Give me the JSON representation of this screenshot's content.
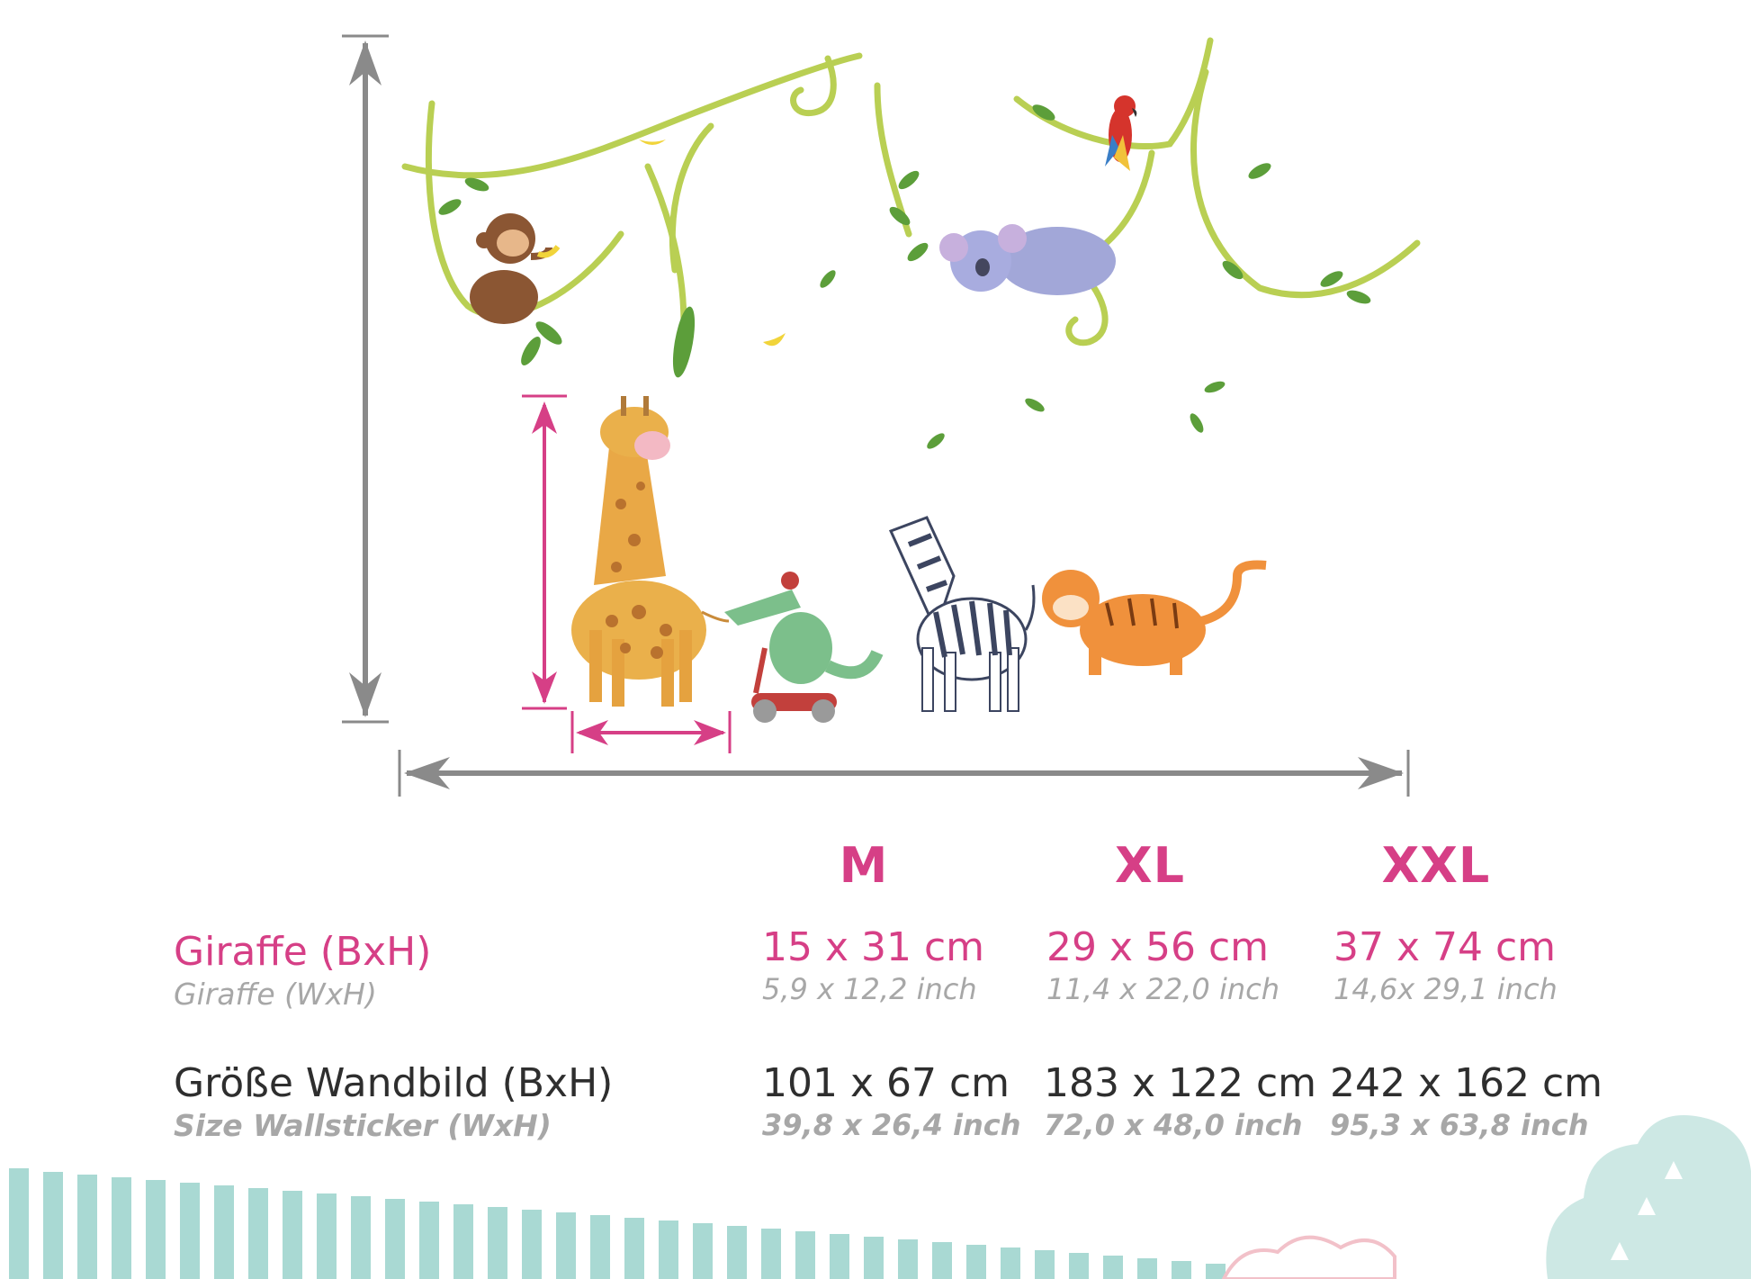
{
  "sizes": {
    "headers": [
      "M",
      "XL",
      "XXL"
    ]
  },
  "rows": {
    "giraffe": {
      "label": "Giraffe (BxH)",
      "sublabel": "Giraffe (WxH)",
      "values": [
        {
          "cm": "15 x 31 cm",
          "inch": "5,9 x 12,2 inch"
        },
        {
          "cm": "29 x 56 cm",
          "inch": "11,4 x 22,0 inch"
        },
        {
          "cm": "37 x 74 cm",
          "inch": "14,6x 29,1 inch"
        }
      ]
    },
    "wall": {
      "label": "Größe Wandbild (BxH)",
      "sublabel": "Size Wallsticker (WxH)",
      "values": [
        {
          "cm": "101 x 67 cm",
          "inch": "39,8 x 26,4 inch"
        },
        {
          "cm": "183 x 122 cm",
          "inch": "72,0 x 48,0 inch"
        },
        {
          "cm": "242 x 162 cm",
          "inch": "95,3 x 63,8 inch"
        }
      ]
    }
  },
  "colors": {
    "accent_pink": "#d63f86",
    "dimension_gray": "#8a8a8a",
    "vine_green": "#9cc43c",
    "stripe_teal": "#a9d9d3"
  },
  "illustration": {
    "icons": [
      "monkey-icon",
      "koala-icon",
      "parrot-icon",
      "giraffe-icon",
      "crocodile-scooter-icon",
      "zebra-icon",
      "tiger-icon",
      "vine-icon",
      "banana-icon",
      "leaf-icon"
    ]
  }
}
